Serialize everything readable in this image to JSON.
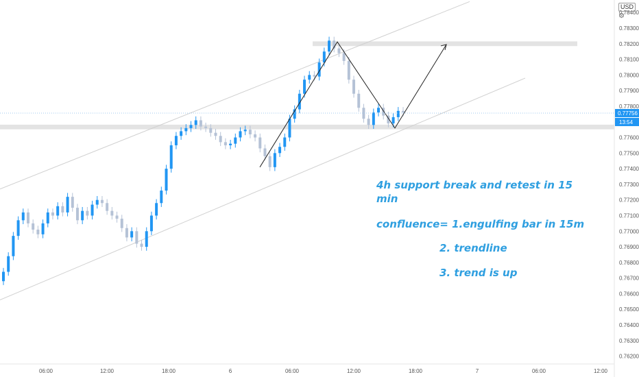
{
  "header": {
    "currency": "USD",
    "settings_icon": "gear-icon",
    "collapse_icon": "chevron-up-icon"
  },
  "price_scale": {
    "labels": [
      "0.78400",
      "0.78300",
      "0.78200",
      "0.78100",
      "0.78000",
      "0.77900",
      "0.77800",
      "0.77600",
      "0.77500",
      "0.77400",
      "0.77300",
      "0.77200",
      "0.77100",
      "0.77000",
      "0.76900",
      "0.76800",
      "0.76700",
      "0.76600",
      "0.76500",
      "0.76400",
      "0.76300",
      "0.76200"
    ],
    "current_price": "0.77756",
    "countdown": "13:54"
  },
  "time_axis": {
    "labels": [
      "06:00",
      "12:00",
      "18:00",
      "6",
      "06:00",
      "12:00",
      "18:00",
      "7",
      "06:00",
      "12:00"
    ]
  },
  "annotations": {
    "line1": "4h support break and retest in 15",
    "line2": "min",
    "line3": "confluence= 1.engulfing bar in 15m",
    "line4": "2. trendline",
    "line5": "3. trend is up"
  },
  "colors": {
    "bull": "#2196f3",
    "bear": "#b5c2d6",
    "zone": "#e3e3e3",
    "text": "#2f9fe0",
    "channel": "#d0d0d0",
    "price_badge": "#2196f3"
  },
  "chart_data": {
    "type": "candlestick",
    "ylim": [
      0.7615,
      0.7848
    ],
    "xlabels": [
      "06:00",
      "12:00",
      "18:00",
      "6",
      "06:00",
      "12:00",
      "18:00",
      "7",
      "06:00",
      "12:00"
    ],
    "close_path": [
      0.7674,
      0.7684,
      0.7697,
      0.7707,
      0.7712,
      0.7705,
      0.7701,
      0.7698,
      0.7705,
      0.7712,
      0.771,
      0.7716,
      0.7712,
      0.7722,
      0.7715,
      0.7707,
      0.7713,
      0.771,
      0.7717,
      0.772,
      0.7718,
      0.7713,
      0.771,
      0.7708,
      0.7702,
      0.7696,
      0.77,
      0.7692,
      0.769,
      0.77,
      0.771,
      0.7718,
      0.7726,
      0.774,
      0.7755,
      0.7761,
      0.7764,
      0.7766,
      0.7768,
      0.7771,
      0.7767,
      0.7766,
      0.7763,
      0.7761,
      0.7757,
      0.7755,
      0.7756,
      0.776,
      0.7764,
      0.7765,
      0.7762,
      0.776,
      0.7753,
      0.7748,
      0.7741,
      0.775,
      0.7754,
      0.776,
      0.7772,
      0.7778,
      0.7788,
      0.7797,
      0.78,
      0.7799,
      0.7808,
      0.7815,
      0.7822,
      0.7817,
      0.7814,
      0.7809,
      0.7797,
      0.7788,
      0.7779,
      0.7772,
      0.7768,
      0.7776,
      0.7779,
      0.7774,
      0.7769,
      0.7773,
      0.7777,
      0.7776
    ],
    "zones": [
      [
        0.78185,
        0.78215
      ],
      [
        0.77652,
        0.77682
      ]
    ],
    "channel": {
      "upper": [
        [
          0,
          0.7727
        ],
        [
          1,
          0.7847
        ]
      ],
      "lower": [
        [
          0,
          0.7656
        ],
        [
          1,
          0.7798
        ]
      ]
    },
    "projection": [
      [
        0.7766,
        0.7766
      ],
      [
        0.78195,
        0.78195
      ]
    ]
  }
}
